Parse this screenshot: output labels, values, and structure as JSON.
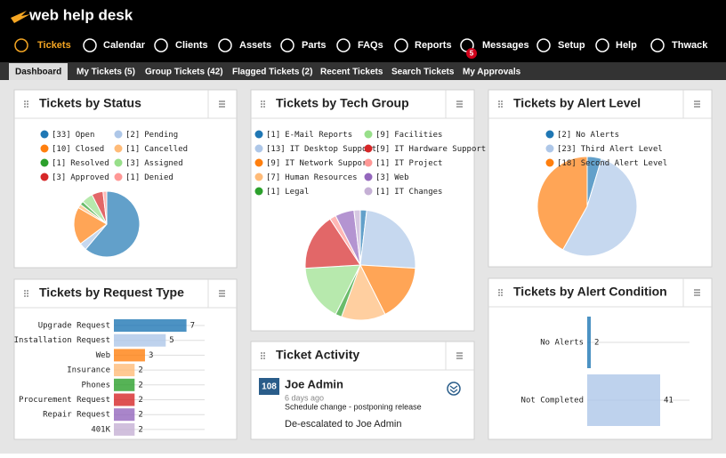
{
  "header": {
    "logo": "web help desk",
    "nav": [
      "Tickets",
      "Calendar",
      "Clients",
      "Assets",
      "Parts",
      "FAQs",
      "Reports",
      "Messages",
      "Setup",
      "Help",
      "Thwack"
    ],
    "badge": "5"
  },
  "tabs": [
    "Dashboard",
    "My Tickets (5)",
    "Group Tickets (42)",
    "Flagged Tickets (2)",
    "Recent Tickets",
    "Search Tickets",
    "My Approvals"
  ],
  "chart_data": [
    {
      "type": "pie",
      "title": "Tickets by Status",
      "categories": [
        "Open",
        "Pending",
        "Closed",
        "Cancelled",
        "Resolved",
        "Assigned",
        "Approved",
        "Denied"
      ],
      "values": [
        33,
        2,
        10,
        1,
        1,
        3,
        3,
        1
      ],
      "value_labels": [
        "[33]",
        "[2]",
        "[10]",
        "[1]",
        "[1]",
        "[3]",
        "[3]",
        "[1]"
      ],
      "colors": [
        "#1f77b4",
        "#aec7e8",
        "#ff7f0e",
        "#ffbb78",
        "#2ca02c",
        "#98df8a",
        "#d62728",
        "#ff9896"
      ]
    },
    {
      "type": "pie",
      "title": "Tickets by Tech Group",
      "categories": [
        "E-Mail Reports",
        "IT Desktop Support",
        "IT Network Support",
        "Human Resources",
        "Legal",
        "Facilities",
        "IT Hardware Support",
        "IT Project",
        "Web",
        "IT Changes"
      ],
      "values": [
        1,
        13,
        9,
        7,
        1,
        9,
        9,
        1,
        3,
        1
      ],
      "value_labels": [
        "[1]",
        "[13]",
        "[9]",
        "[7]",
        "[1]",
        "[9]",
        "[9]",
        "[1]",
        "[3]",
        "[1]"
      ],
      "colors": [
        "#1f77b4",
        "#aec7e8",
        "#ff7f0e",
        "#ffbb78",
        "#2ca02c",
        "#98df8a",
        "#d62728",
        "#ff9896",
        "#9467bd",
        "#c5b0d5"
      ]
    },
    {
      "type": "pie",
      "title": "Tickets by Alert Level",
      "categories": [
        "No Alerts",
        "Third Alert Level",
        "Second Alert Level"
      ],
      "values": [
        2,
        23,
        18
      ],
      "value_labels": [
        "[2]",
        "[23]",
        "[18]"
      ],
      "colors": [
        "#1f77b4",
        "#aec7e8",
        "#ff7f0e"
      ]
    },
    {
      "type": "bar",
      "title": "Tickets by Request Type",
      "categories": [
        "Upgrade Request",
        "Installation Request",
        "Web",
        "Insurance",
        "Phones",
        "Procurement Request",
        "Repair Request",
        "401K"
      ],
      "values": [
        7,
        5,
        3,
        2,
        2,
        2,
        2,
        2
      ],
      "colors": [
        "#1f77b4",
        "#aec7e8",
        "#ff7f0e",
        "#ffbb78",
        "#2ca02c",
        "#d62728",
        "#9467bd",
        "#c5b0d5"
      ],
      "xlim": [
        0,
        8.75
      ]
    },
    {
      "type": "bar",
      "title": "Tickets by Alert Condition",
      "categories": [
        "No Alerts",
        "Not Completed"
      ],
      "values": [
        2,
        41
      ],
      "colors": [
        "#1f77b4",
        "#aec7e8"
      ],
      "xlim": [
        0,
        57.5
      ]
    }
  ],
  "activity": {
    "title": "Ticket Activity",
    "ticket": "108",
    "name": "Joe Admin",
    "time": "6 days ago",
    "subject": "Schedule change - postponing release",
    "note": "De-escalated to Joe Admin"
  }
}
